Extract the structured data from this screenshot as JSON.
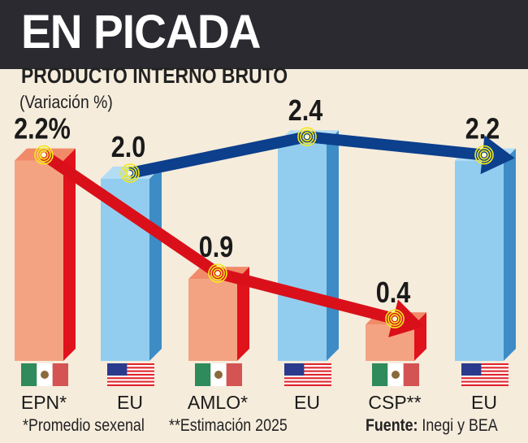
{
  "header": {
    "title": "EN PICADA",
    "subtitle": "PRODUCTO INTERNO BRUTO",
    "unit": "(Variación %)"
  },
  "chart_data": {
    "type": "bar",
    "title": "PRODUCTO INTERNO BRUTO",
    "ylabel": "(Variación %)",
    "categories": [
      "EPN*",
      "EU",
      "AMLO*",
      "EU",
      "CSP**",
      "EU"
    ],
    "country": [
      "mexico",
      "usa",
      "mexico",
      "usa",
      "mexico",
      "usa"
    ],
    "values": [
      2.2,
      2.0,
      0.9,
      2.4,
      0.4,
      2.2
    ],
    "value_labels": [
      "2.2%",
      "2.0",
      "0.9",
      "2.4",
      "0.4",
      "2.2"
    ],
    "ylim": [
      0,
      2.4
    ],
    "colors": {
      "mexico_front": "#f4a382",
      "mexico_side": "#e0121c",
      "usa_front": "#92cdf0",
      "usa_side": "#3d8cc6",
      "red_arrow": "#d9101a",
      "blue_arrow": "#0c3f8c"
    }
  },
  "footer": {
    "note1": "*Promedio sexenal",
    "note2": "**Estimación 2025",
    "source_label": "Fuente:",
    "source": " Inegi y BEA"
  }
}
